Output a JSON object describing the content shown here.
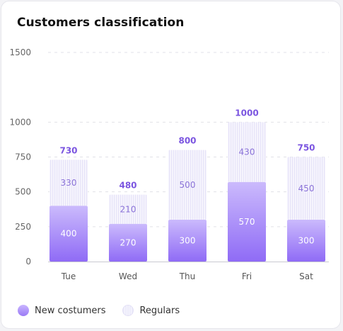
{
  "chart_data": {
    "type": "bar",
    "stacked": true,
    "title": "Customers classification",
    "categories": [
      "Tue",
      "Wed",
      "Thu",
      "Fri",
      "Sat"
    ],
    "series": [
      {
        "name": "New costumers",
        "values": [
          400,
          270,
          300,
          570,
          300
        ]
      },
      {
        "name": "Regulars",
        "values": [
          330,
          210,
          500,
          430,
          450
        ]
      }
    ],
    "totals": [
      730,
      480,
      800,
      1000,
      750
    ],
    "yticks": [
      0,
      250,
      500,
      750,
      1000,
      1500
    ],
    "ylim": [
      0,
      1500
    ],
    "grid": true,
    "legend": "bottom-left",
    "colors": {
      "new_top": "#cbbafc",
      "new_bottom": "#8f6bf6",
      "regulars": "#efedfb",
      "total_text": "#7b55e0"
    }
  }
}
